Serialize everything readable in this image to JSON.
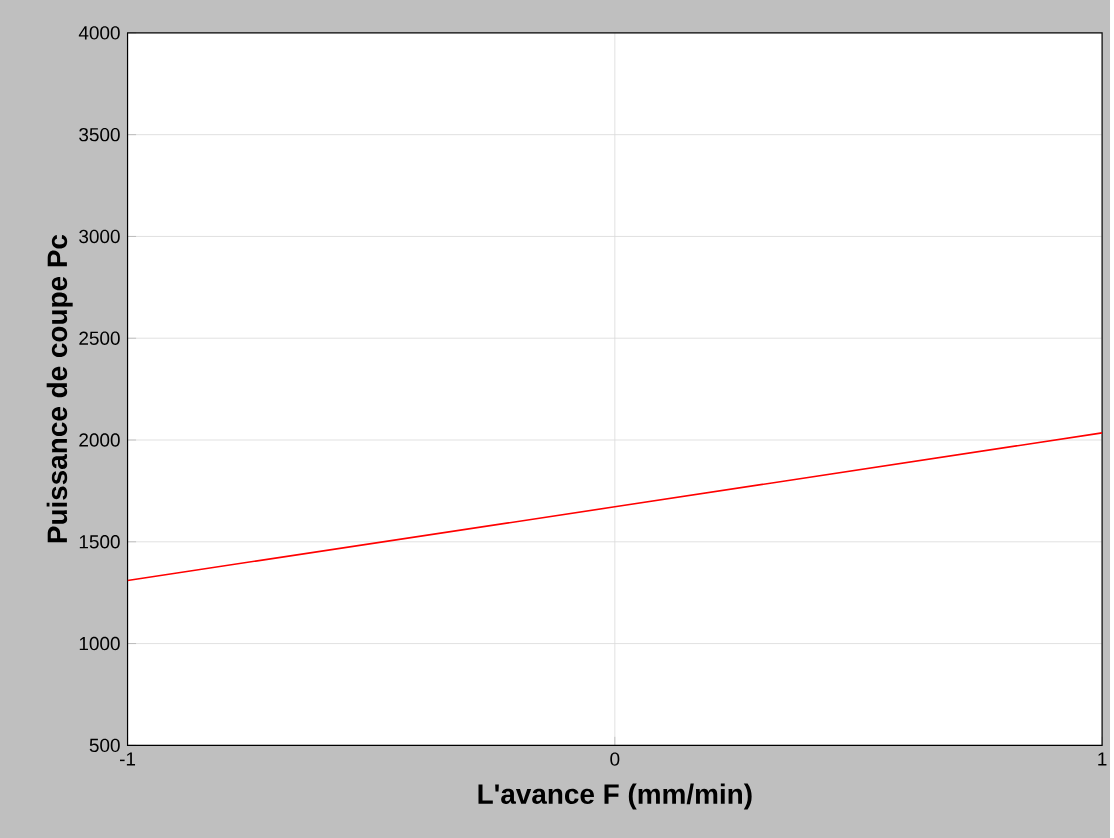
{
  "chart_data": {
    "type": "line",
    "xlabel": "L'avance F (mm/min)",
    "ylabel": "Puissance de coupe Pc",
    "x": [
      -1,
      0,
      1
    ],
    "series": [
      {
        "color": "#ff0000",
        "values": [
          1310,
          1672,
          2035
        ]
      }
    ],
    "xlim": [
      -1,
      1
    ],
    "xticks": [
      -1,
      0,
      1
    ],
    "ylim": [
      500,
      4000
    ],
    "yticks": [
      500,
      1000,
      1500,
      2000,
      2500,
      3000,
      3500,
      4000
    ],
    "grid": true,
    "marker": "none",
    "line_style": "solid"
  }
}
